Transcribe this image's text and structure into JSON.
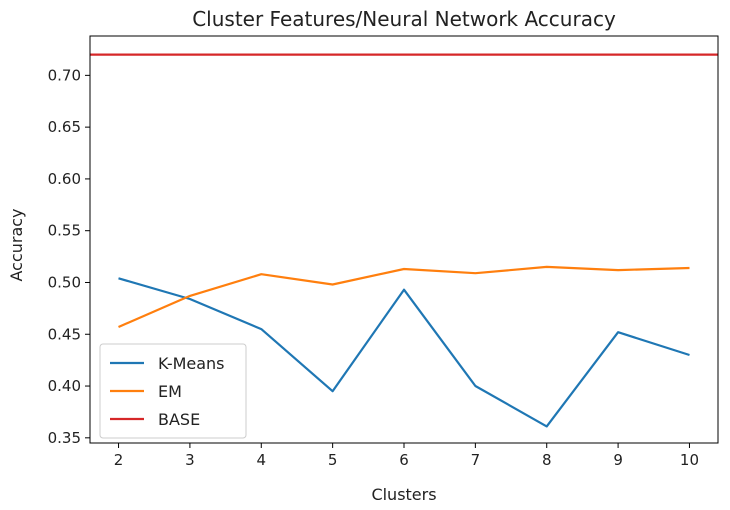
{
  "chart_data": {
    "type": "line",
    "title": "Cluster Features/Neural Network Accuracy",
    "xlabel": "Clusters",
    "ylabel": "Accuracy",
    "x": [
      2,
      3,
      4,
      5,
      6,
      7,
      8,
      9,
      10
    ],
    "xlim": [
      1.6,
      10.4
    ],
    "ylim": [
      0.345,
      0.738
    ],
    "xticks": [
      "2",
      "3",
      "4",
      "5",
      "6",
      "7",
      "8",
      "9",
      "10"
    ],
    "yticks": [
      "0.35",
      "0.40",
      "0.45",
      "0.50",
      "0.55",
      "0.60",
      "0.65",
      "0.70"
    ],
    "grid": false,
    "legend_position": "lower-left",
    "series": [
      {
        "name": "K-Means",
        "color": "#1f77b4",
        "values": [
          0.504,
          0.484,
          0.455,
          0.395,
          0.493,
          0.4,
          0.361,
          0.452,
          0.43
        ]
      },
      {
        "name": "EM",
        "color": "#ff7f0e",
        "values": [
          0.457,
          0.487,
          0.508,
          0.498,
          0.513,
          0.509,
          0.515,
          0.512,
          0.514
        ]
      },
      {
        "name": "BASE",
        "color": "#d62728",
        "values": [
          0.72,
          0.72,
          0.72,
          0.72,
          0.72,
          0.72,
          0.72,
          0.72,
          0.72
        ],
        "span_full_width": true
      }
    ]
  }
}
